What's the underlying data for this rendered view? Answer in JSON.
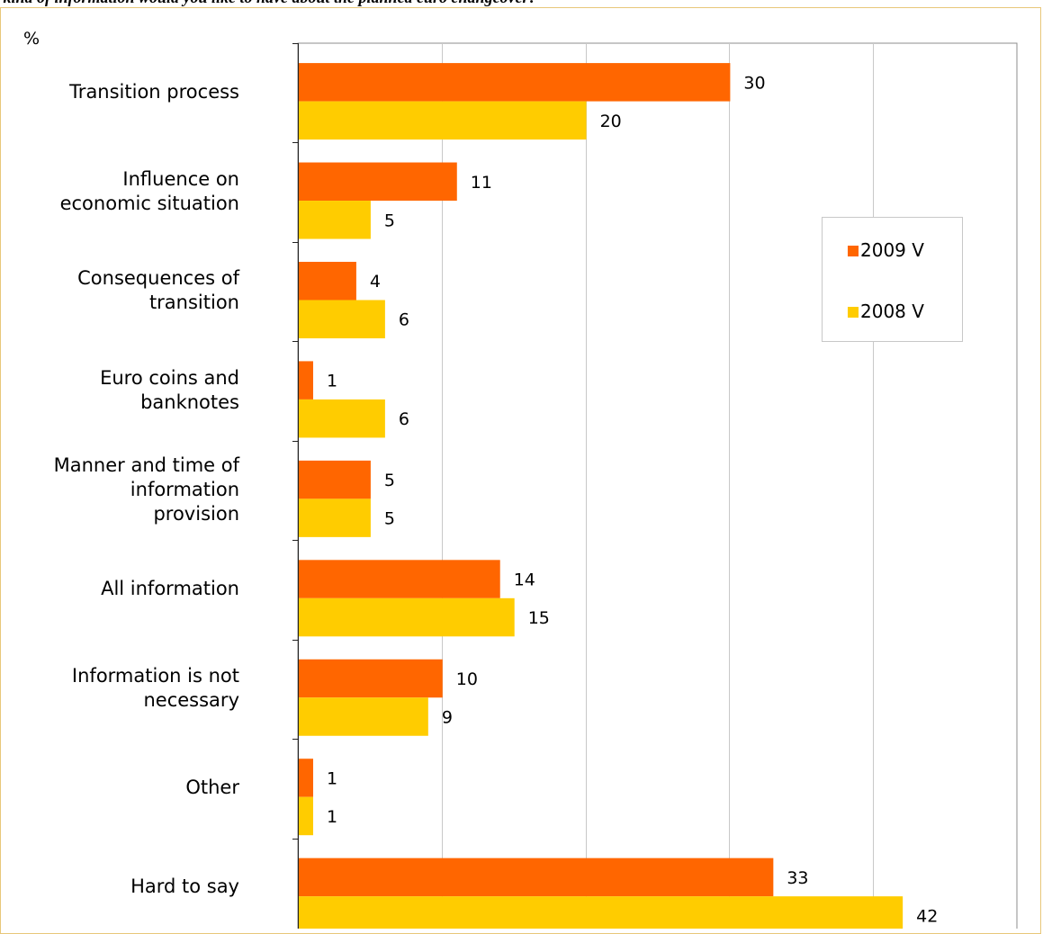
{
  "title": "t kind of information would you like to have about the planned euro changeover?",
  "chart_data": {
    "type": "bar",
    "orientation": "horizontal",
    "unit_label": "%",
    "categories": [
      "Transition process",
      "Influence on\neconomic situation",
      "Consequences of\ntransition",
      "Euro coins and\nbanknotes",
      "Manner and time of\ninformation\nprovision",
      "All information",
      "Information is not\nnecessary",
      "Other",
      "Hard to say"
    ],
    "series": [
      {
        "name": "2009 V",
        "color": "#ff6600",
        "values": [
          30,
          11,
          4,
          1,
          5,
          14,
          10,
          1,
          33
        ]
      },
      {
        "name": "2008 V",
        "color": "#ffcc00",
        "values": [
          20,
          5,
          6,
          6,
          5,
          15,
          9,
          1,
          42
        ]
      }
    ],
    "data_labels": [
      [
        "30",
        "11",
        "4",
        "1",
        "5",
        "14",
        "10",
        "1",
        "33"
      ],
      [
        "20",
        "5",
        "6",
        "6",
        "5",
        "15",
        "9",
        "1",
        "42"
      ]
    ],
    "xlim": [
      0,
      50
    ],
    "grid": true,
    "legend_position": "right"
  }
}
